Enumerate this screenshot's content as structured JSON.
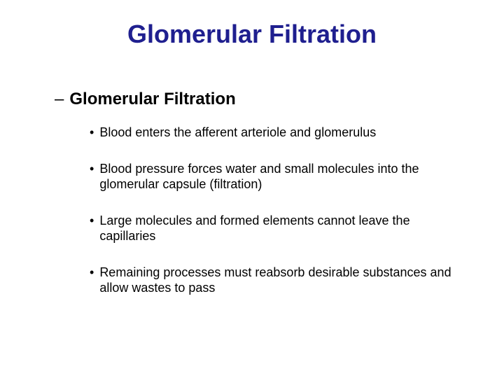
{
  "colors": {
    "title": "#1f1f8f",
    "body": "#000000",
    "background": "#ffffff"
  },
  "typography": {
    "title_fontsize": 36,
    "subheading_fontsize": 24,
    "bullet_fontsize": 18,
    "font_family": "Arial"
  },
  "title": "Glomerular Filtration",
  "subheading": {
    "marker": "–",
    "text": "Glomerular Filtration"
  },
  "bullets": [
    {
      "marker": "•",
      "text": "Blood enters the afferent arteriole and glomerulus"
    },
    {
      "marker": "•",
      "text": "Blood pressure forces water and small molecules into the glomerular capsule (filtration)"
    },
    {
      "marker": "•",
      "text": "Large molecules and formed elements cannot leave the capillaries"
    },
    {
      "marker": "•",
      "text": "Remaining processes must reabsorb desirable substances and allow wastes to pass"
    }
  ]
}
